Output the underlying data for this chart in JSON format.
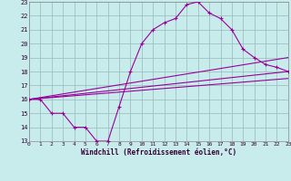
{
  "xlabel": "Windchill (Refroidissement éolien,°C)",
  "background_color": "#c8ecec",
  "grid_color": "#a0c0c0",
  "line_color": "#990099",
  "xlim": [
    0,
    23
  ],
  "ylim": [
    13,
    23
  ],
  "xticks": [
    0,
    1,
    2,
    3,
    4,
    5,
    6,
    7,
    8,
    9,
    10,
    11,
    12,
    13,
    14,
    15,
    16,
    17,
    18,
    19,
    20,
    21,
    22,
    23
  ],
  "yticks": [
    13,
    14,
    15,
    16,
    17,
    18,
    19,
    20,
    21,
    22,
    23
  ],
  "curve_x": [
    0,
    1,
    2,
    3,
    4,
    5,
    6,
    7,
    8,
    9,
    10,
    11,
    12,
    13,
    14,
    15,
    16,
    17,
    18,
    19,
    20,
    21,
    22,
    23
  ],
  "curve_y": [
    16,
    16,
    15,
    15,
    14,
    14,
    13,
    13,
    15.5,
    18,
    20,
    21,
    21.5,
    21.8,
    22.8,
    23,
    22.2,
    21.8,
    21,
    19.6,
    19,
    18.5,
    18.3,
    18
  ],
  "line2_x": [
    0,
    23
  ],
  "line2_y": [
    16,
    18
  ],
  "line3_x": [
    0,
    23
  ],
  "line3_y": [
    16,
    19
  ],
  "line4_x": [
    0,
    23
  ],
  "line4_y": [
    16,
    17.5
  ]
}
